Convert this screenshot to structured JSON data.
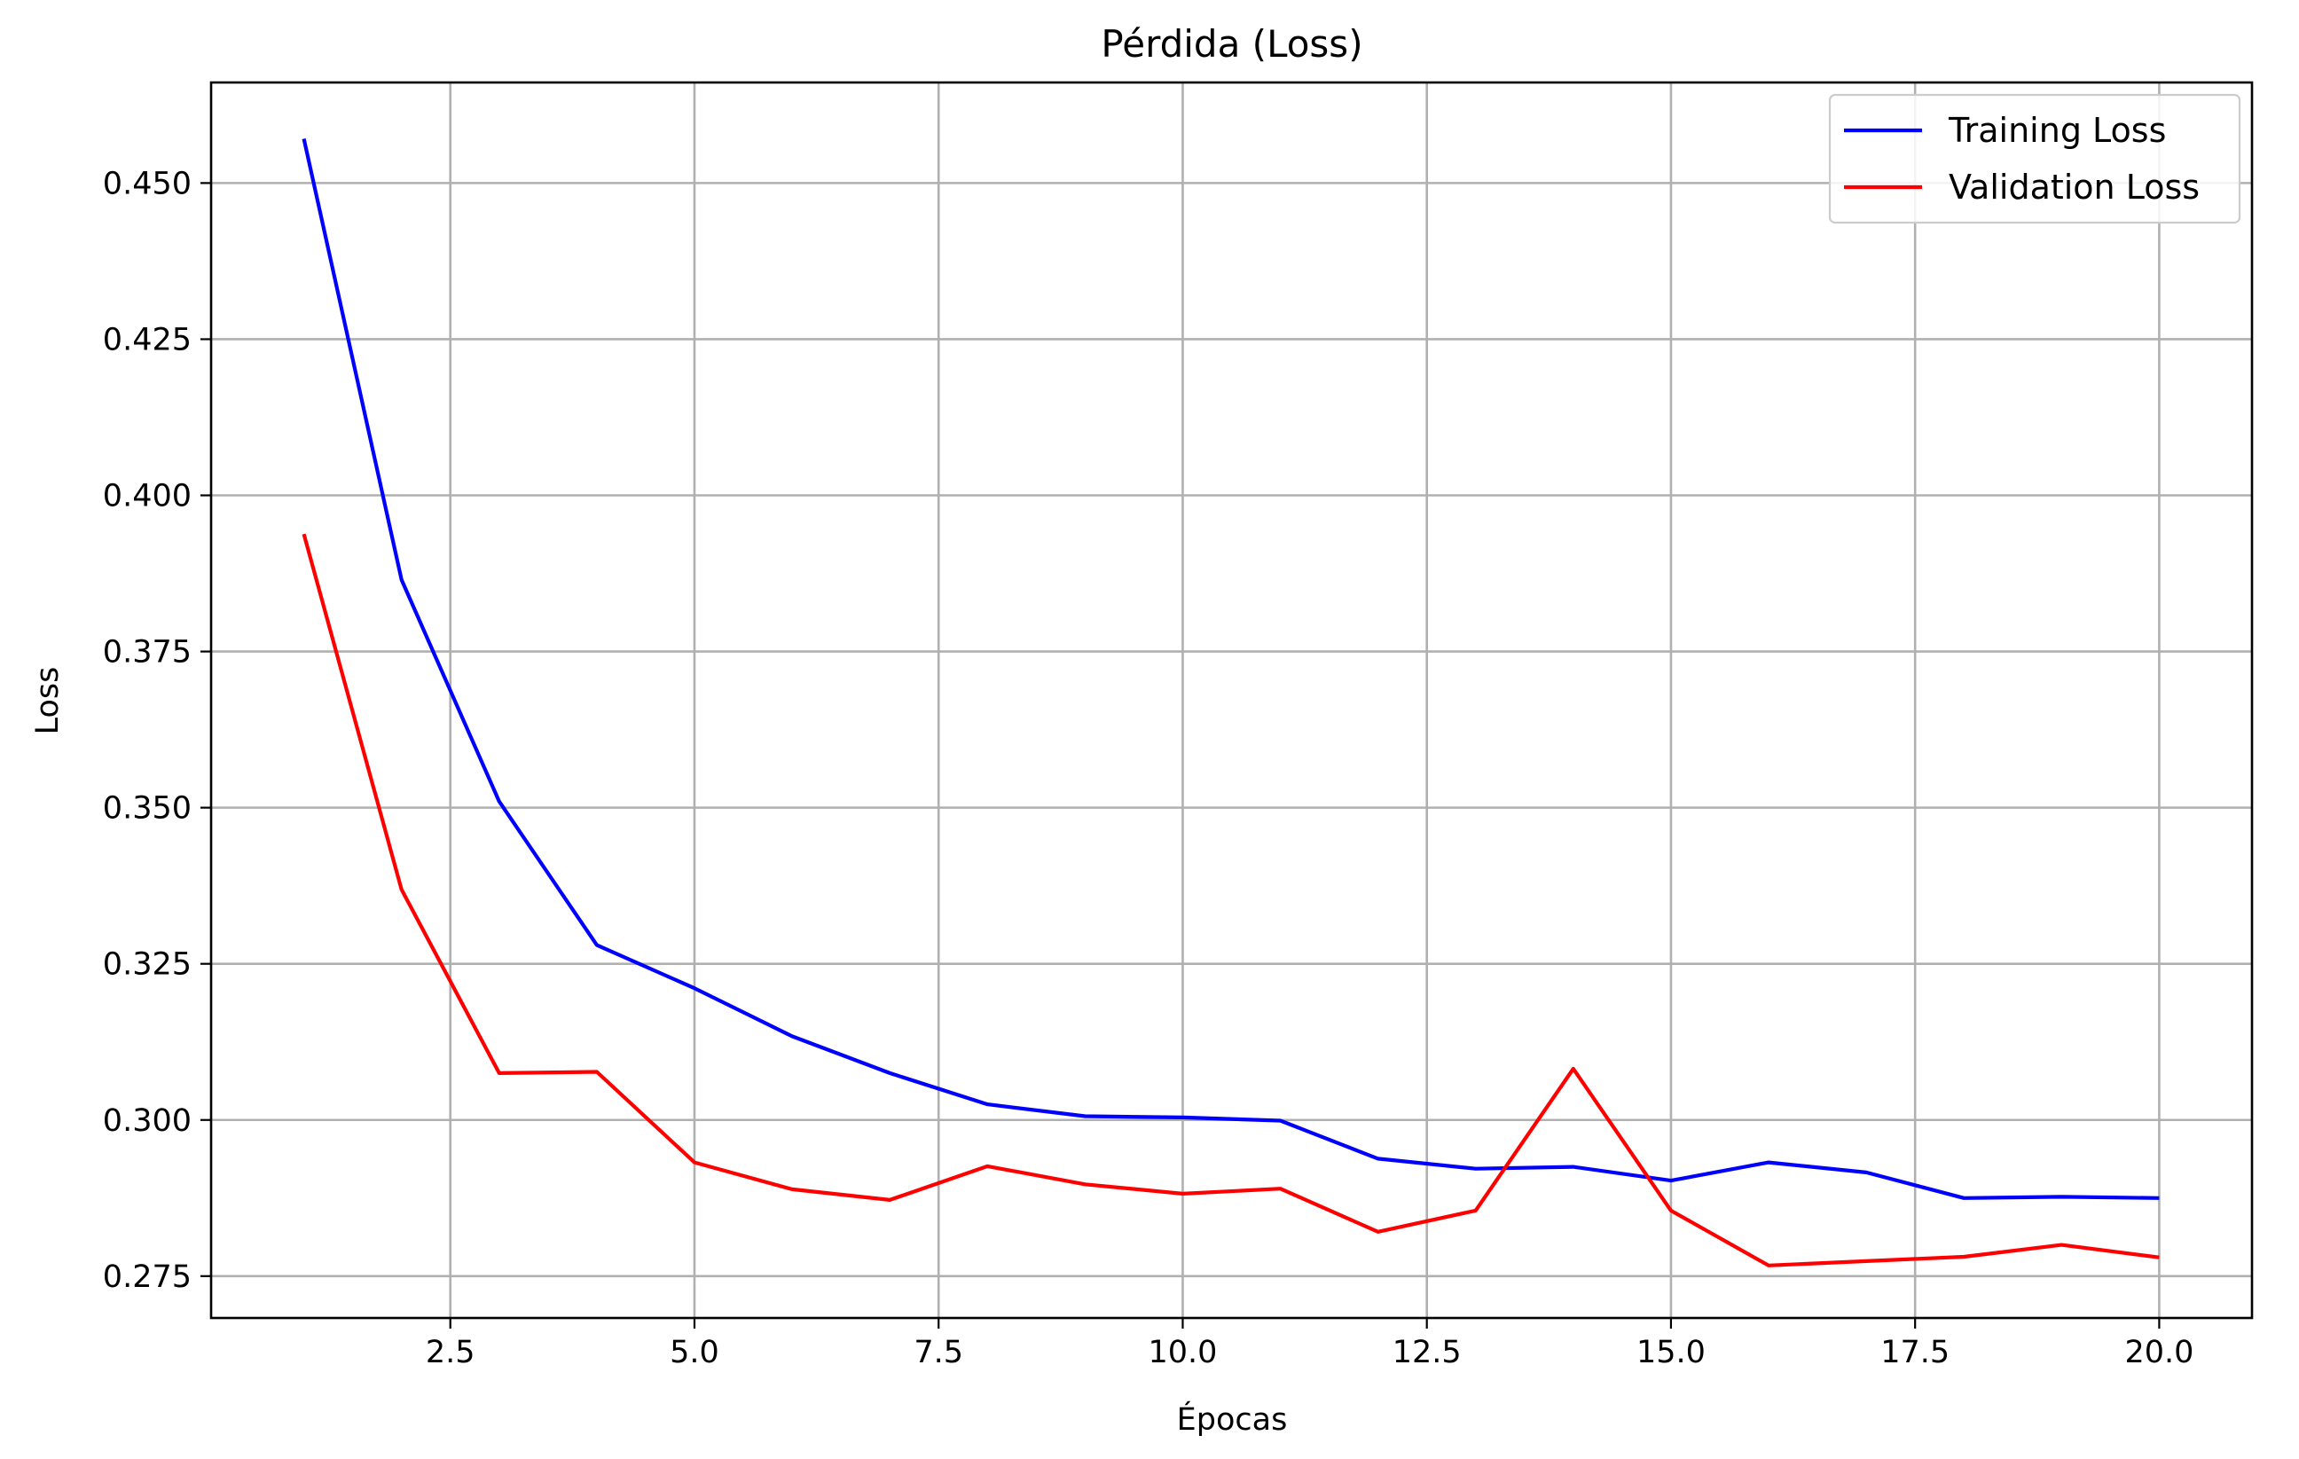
{
  "chart_data": {
    "type": "line",
    "title": "Pérdida (Loss)",
    "xlabel": "Épocas",
    "ylabel": "Loss",
    "xlim": [
      0.05,
      20.95
    ],
    "ylim": [
      0.2683,
      0.4661
    ],
    "xticks": [
      2.5,
      5.0,
      7.5,
      10.0,
      12.5,
      15.0,
      17.5,
      20.0
    ],
    "xtick_labels": [
      "2.5",
      "5.0",
      "7.5",
      "10.0",
      "12.5",
      "15.0",
      "17.5",
      "20.0"
    ],
    "yticks": [
      0.275,
      0.3,
      0.325,
      0.35,
      0.375,
      0.4,
      0.425,
      0.45
    ],
    "ytick_labels": [
      "0.275",
      "0.300",
      "0.325",
      "0.350",
      "0.375",
      "0.400",
      "0.425",
      "0.450"
    ],
    "grid": true,
    "legend_position": "top-right",
    "x": [
      1,
      2,
      3,
      4,
      5,
      6,
      7,
      8,
      9,
      10,
      11,
      12,
      13,
      14,
      15,
      16,
      17,
      18,
      19,
      20
    ],
    "series": [
      {
        "name": "Training Loss",
        "color": "#0000ff",
        "values": [
          0.4571,
          0.3865,
          0.351,
          0.328,
          0.3211,
          0.3134,
          0.3075,
          0.3025,
          0.3006,
          0.3004,
          0.2999,
          0.2938,
          0.2922,
          0.2925,
          0.2903,
          0.2932,
          0.2916,
          0.2875,
          0.2877,
          0.2875
        ]
      },
      {
        "name": "Validation Loss",
        "color": "#ff0000",
        "values": [
          0.3938,
          0.3369,
          0.3075,
          0.3077,
          0.2932,
          0.2889,
          0.2872,
          0.2926,
          0.2897,
          0.2882,
          0.289,
          0.2821,
          0.2855,
          0.3082,
          0.2855,
          0.2767,
          0.2774,
          0.2781,
          0.28,
          0.278
        ]
      }
    ]
  }
}
